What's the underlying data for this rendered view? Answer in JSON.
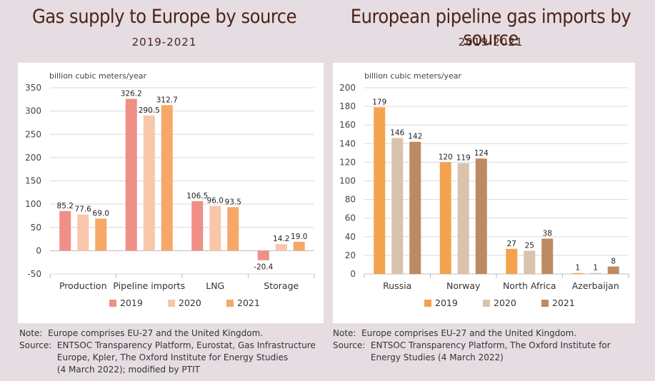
{
  "chart_data": [
    {
      "type": "bar",
      "title": "Gas supply to Europe by source",
      "subtitle": "2019-2021",
      "ylabel": "billion cubic meters/year",
      "xlabel": "",
      "ylim": [
        -50,
        350
      ],
      "yticks": [
        -50,
        0,
        50,
        100,
        150,
        200,
        250,
        300,
        350
      ],
      "grid": true,
      "legend": "bottom",
      "categories": [
        "Production",
        "Pipeline imports",
        "LNG",
        "Storage"
      ],
      "series": [
        {
          "name": "2019",
          "color": "#ef8f86",
          "values": [
            85.2,
            326.2,
            106.5,
            -20.4
          ],
          "labels": [
            "85.2",
            "326.2",
            "106.5",
            "-20.4"
          ]
        },
        {
          "name": "2020",
          "color": "#f8c6a8",
          "values": [
            77.6,
            290.5,
            96.0,
            14.2
          ],
          "labels": [
            "77.6",
            "290.5",
            "96.0",
            "14.2"
          ]
        },
        {
          "name": "2021",
          "color": "#f6a867",
          "values": [
            69.0,
            312.7,
            93.5,
            19.0
          ],
          "labels": [
            "69.0",
            "312.7",
            "93.5",
            "19.0"
          ]
        }
      ]
    },
    {
      "type": "bar",
      "title": "European pipeline gas imports by source",
      "subtitle": "2019-2021",
      "ylabel": "billion cubic meters/year",
      "xlabel": "",
      "ylim": [
        0,
        200
      ],
      "yticks": [
        0,
        20,
        40,
        60,
        80,
        100,
        120,
        140,
        160,
        180,
        200
      ],
      "grid": true,
      "legend": "bottom",
      "categories": [
        "Russia",
        "Norway",
        "North Africa",
        "Azerbaijan"
      ],
      "series": [
        {
          "name": "2019",
          "color": "#f5a24f",
          "values": [
            179,
            120,
            27,
            1
          ],
          "labels": [
            "179",
            "120",
            "27",
            "1"
          ]
        },
        {
          "name": "2020",
          "color": "#d9c3ac",
          "values": [
            146,
            119,
            25,
            1
          ],
          "labels": [
            "146",
            "119",
            "25",
            "1"
          ]
        },
        {
          "name": "2021",
          "color": "#bd8a62",
          "values": [
            142,
            124,
            38,
            8
          ],
          "labels": [
            "142",
            "124",
            "38",
            "8"
          ]
        }
      ]
    }
  ],
  "notes": [
    {
      "note_label": "Note:",
      "note_text": "Europe comprises EU-27 and the United Kingdom.",
      "source_label": "Source:",
      "source_lines": [
        "ENTSOC Transparency Platform, Eurostat, Gas Infrastructure",
        "Europe, Kpler, The Oxford Institute for Energy Studies",
        "(4 March 2022); modified by PTIT"
      ]
    },
    {
      "note_label": "Note:",
      "note_text": "Europe comprises EU-27 and the United Kingdom.",
      "source_label": "Source:",
      "source_lines": [
        "ENTSOC Transparency Platform, The Oxford Institute for",
        "Energy Studies (4 March 2022)"
      ]
    }
  ]
}
